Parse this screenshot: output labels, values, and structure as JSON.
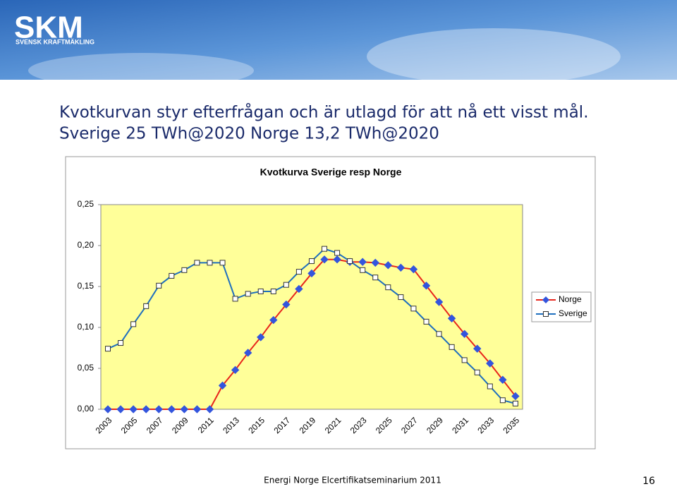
{
  "header": {
    "logo": "SKM",
    "tagline": "SVENSK KRAFTMÄKLING"
  },
  "slide": {
    "title_lines": [
      "Kvotkurvan styr efterfrågan och är utlagd för att nå ett visst mål.",
      "Sverige 25 TWh@2020  Norge 13,2 TWh@2020"
    ]
  },
  "chart_data": {
    "type": "line",
    "title": "Kvotkurva Sverige resp Norge",
    "categories": [
      "2003",
      null,
      "2005",
      null,
      "2007",
      null,
      "2009",
      null,
      "2011",
      null,
      "2013",
      null,
      "2015",
      null,
      "2017",
      null,
      "2019",
      null,
      "2021",
      null,
      "2023",
      null,
      "2025",
      null,
      "2027",
      null,
      "2029",
      null,
      "2031",
      null,
      "2033",
      null,
      "2035"
    ],
    "series": [
      {
        "name": "Norge",
        "color": "#e8261c",
        "marker": "diamond",
        "marker_color": "#3355dd",
        "values": [
          0,
          0,
          0,
          0,
          0,
          0,
          0,
          0,
          0,
          0.029,
          0.048,
          0.069,
          0.088,
          0.109,
          0.128,
          0.147,
          0.166,
          0.183,
          0.183,
          0.18,
          0.18,
          0.179,
          0.176,
          0.173,
          0.171,
          0.151,
          0.131,
          0.111,
          0.092,
          0.074,
          0.056,
          0.036,
          0.016
        ]
      },
      {
        "name": "Sverige",
        "color": "#1f6fbf",
        "marker": "square",
        "marker_color": "#ffffff",
        "values": [
          0.074,
          0.081,
          0.104,
          0.126,
          0.151,
          0.163,
          0.17,
          0.179,
          0.179,
          0.179,
          0.135,
          0.141,
          0.144,
          0.144,
          0.152,
          0.168,
          0.181,
          0.196,
          0.191,
          0.181,
          0.17,
          0.161,
          0.149,
          0.137,
          0.123,
          0.107,
          0.092,
          0.076,
          0.06,
          0.045,
          0.028,
          0.011,
          0.007
        ]
      }
    ],
    "ylim": [
      0,
      0.25
    ],
    "yticks": [
      {
        "value": 0,
        "label": "0,00"
      },
      {
        "value": 0.05,
        "label": "0,05"
      },
      {
        "value": 0.1,
        "label": "0,10"
      },
      {
        "value": 0.15,
        "label": "0,15"
      },
      {
        "value": 0.2,
        "label": "0,20"
      },
      {
        "value": 0.25,
        "label": "0,25"
      }
    ],
    "plot_background": "#ffff99",
    "legend": "right"
  },
  "footer": {
    "text": "Energi Norge Elcertifikatseminarium 2011",
    "page": "16"
  }
}
